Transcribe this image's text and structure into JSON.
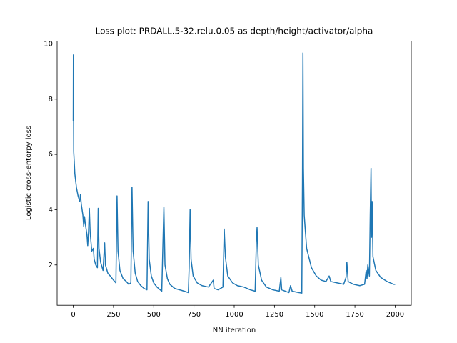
{
  "chart_data": {
    "type": "line",
    "title": "Loss plot: PRDALL.5-32.relu.0.05 as depth/height/activator/alpha",
    "x_label": "NN iteration",
    "y_label": "Logistic cross-entorpy loss",
    "xlim": [
      -100,
      2100
    ],
    "ylim": [
      0.54,
      10.1
    ],
    "xticks": [
      0,
      250,
      500,
      750,
      1000,
      1250,
      1500,
      1750,
      2000
    ],
    "yticks": [
      2,
      4,
      6,
      8,
      10
    ],
    "grid": false,
    "series": [
      {
        "color": "#1f77b4",
        "x": [
          0,
          1,
          3,
          10,
          20,
          30,
          40,
          45,
          50,
          60,
          65,
          70,
          75,
          85,
          90,
          95,
          100,
          105,
          115,
          125,
          130,
          140,
          150,
          155,
          160,
          170,
          185,
          195,
          200,
          215,
          230,
          250,
          265,
          272,
          278,
          290,
          310,
          330,
          345,
          358,
          365,
          372,
          385,
          400,
          420,
          440,
          458,
          465,
          472,
          485,
          500,
          520,
          540,
          550,
          557,
          563,
          570,
          585,
          600,
          630,
          660,
          690,
          715,
          720,
          726,
          732,
          745,
          770,
          800,
          840,
          870,
          875,
          900,
          930,
          938,
          945,
          960,
          990,
          1020,
          1060,
          1100,
          1130,
          1138,
          1142,
          1150,
          1170,
          1200,
          1240,
          1280,
          1290,
          1295,
          1340,
          1350,
          1360,
          1400,
          1420,
          1424,
          1427,
          1430,
          1435,
          1450,
          1480,
          1510,
          1540,
          1570,
          1590,
          1600,
          1640,
          1680,
          1695,
          1700,
          1708,
          1740,
          1780,
          1810,
          1820,
          1825,
          1830,
          1840,
          1845,
          1850,
          1853,
          1857,
          1862,
          1880,
          1910,
          1950,
          1990,
          2000
        ],
        "values": [
          7.2,
          9.6,
          6.1,
          5.3,
          4.8,
          4.5,
          4.3,
          4.55,
          4.2,
          3.8,
          3.4,
          3.75,
          3.5,
          3.1,
          2.7,
          3.2,
          4.05,
          3.2,
          2.5,
          2.6,
          2.2,
          2.0,
          1.9,
          4.05,
          2.6,
          2.1,
          1.8,
          2.8,
          2.0,
          1.7,
          1.6,
          1.45,
          1.35,
          4.5,
          2.5,
          1.8,
          1.5,
          1.4,
          1.3,
          1.35,
          4.82,
          2.5,
          1.7,
          1.4,
          1.25,
          1.15,
          1.1,
          4.3,
          2.2,
          1.6,
          1.35,
          1.2,
          1.1,
          1.05,
          2.7,
          4.1,
          2.0,
          1.5,
          1.3,
          1.15,
          1.1,
          1.05,
          1.0,
          1.9,
          4.0,
          2.2,
          1.6,
          1.35,
          1.25,
          1.2,
          1.45,
          1.15,
          1.1,
          1.2,
          3.3,
          2.3,
          1.6,
          1.35,
          1.25,
          1.2,
          1.1,
          1.05,
          2.9,
          3.35,
          2.0,
          1.45,
          1.2,
          1.1,
          1.05,
          1.55,
          1.1,
          1.0,
          1.25,
          1.05,
          1.0,
          0.98,
          5.0,
          9.67,
          5.5,
          3.8,
          2.6,
          1.9,
          1.6,
          1.45,
          1.4,
          1.6,
          1.4,
          1.35,
          1.3,
          1.55,
          2.1,
          1.4,
          1.3,
          1.25,
          1.3,
          1.8,
          1.5,
          2.0,
          1.6,
          3.8,
          5.5,
          3.0,
          4.3,
          2.3,
          1.8,
          1.55,
          1.4,
          1.3,
          1.3
        ]
      }
    ]
  }
}
